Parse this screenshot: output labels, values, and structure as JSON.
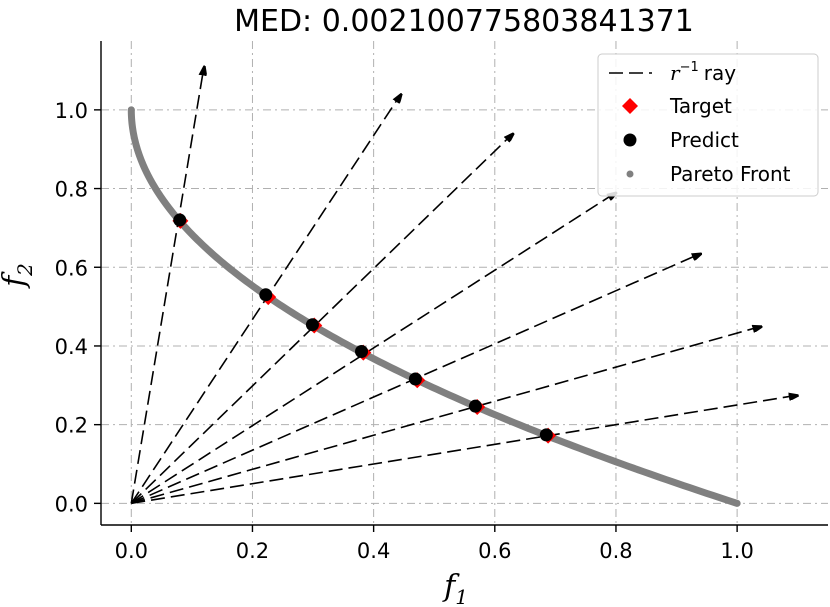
{
  "chart_data": {
    "type": "scatter",
    "title": "MED: 0.0021007758038413​71",
    "xlabel": "f",
    "xlabel_sub": "1",
    "ylabel": "f",
    "ylabel_sub": "2",
    "xlim": [
      -0.05,
      1.15
    ],
    "ylim": [
      -0.055,
      1.175
    ],
    "xticks": [
      0.0,
      0.2,
      0.4,
      0.6,
      0.8,
      1.0
    ],
    "xtick_labels": [
      "0.0",
      "0.2",
      "0.4",
      "0.6",
      "0.8",
      "1.0"
    ],
    "yticks": [
      0.0,
      0.2,
      0.4,
      0.6,
      0.8,
      1.0
    ],
    "ytick_labels": [
      "0.0",
      "0.2",
      "0.4",
      "0.6",
      "0.8",
      "1.0"
    ],
    "grid": true,
    "legend_position": "top-right",
    "colors": {
      "target": "#ff0000",
      "predict": "#000000",
      "pareto": "#808080",
      "ray": "#000000"
    },
    "legend": {
      "ray_r": "r",
      "ray_sup": "−1",
      "ray_rest": "ray",
      "target": "Target",
      "predict": "Predict",
      "pareto": "Pareto Front"
    },
    "rays_end": [
      [
        0.12,
        1.11
      ],
      [
        0.445,
        1.04
      ],
      [
        0.63,
        0.94
      ],
      [
        0.8,
        0.79
      ],
      [
        0.94,
        0.635
      ],
      [
        1.04,
        0.45
      ],
      [
        1.1,
        0.275
      ]
    ],
    "target": [
      [
        0.081,
        0.718
      ],
      [
        0.226,
        0.524
      ],
      [
        0.302,
        0.452
      ],
      [
        0.383,
        0.383
      ],
      [
        0.472,
        0.313
      ],
      [
        0.571,
        0.245
      ],
      [
        0.688,
        0.172
      ]
    ],
    "predict": [
      [
        0.08,
        0.72
      ],
      [
        0.222,
        0.53
      ],
      [
        0.299,
        0.454
      ],
      [
        0.38,
        0.386
      ],
      [
        0.469,
        0.316
      ],
      [
        0.568,
        0.247
      ],
      [
        0.685,
        0.174
      ]
    ],
    "pareto_front": {
      "x_start": 0.0,
      "x_end": 1.0,
      "note_shape": "y = 1 - sqrt(x)"
    }
  }
}
